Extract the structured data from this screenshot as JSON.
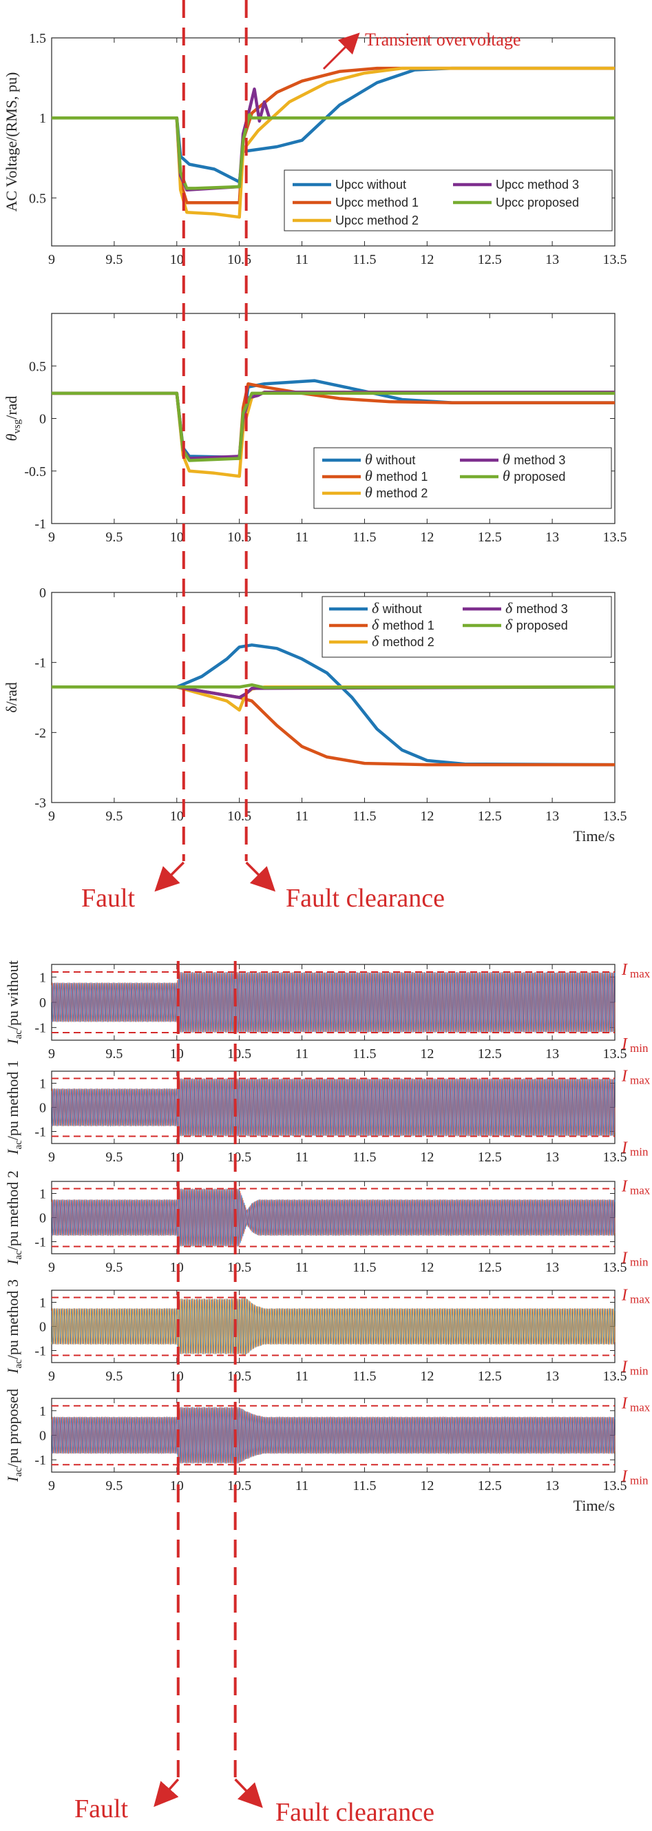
{
  "colors": {
    "without": "#1f77b4",
    "method1": "#d95319",
    "method2": "#edb120",
    "method3": "#7e2f8e",
    "proposed": "#77ac30",
    "annotation": "#d42a2a"
  },
  "annotations": {
    "fault": "Fault",
    "fault_clearance": "Fault clearance",
    "transient_overvoltage": "Transient overvoltage",
    "time_label": "Time/s",
    "imax": "I",
    "imax_sub": "max",
    "imin": "I",
    "imin_sub": "min"
  },
  "chart_data": [
    {
      "type": "line",
      "ylabel": "AC Voltage/(RMS, pu)",
      "xlabel": "",
      "xlim": [
        9,
        13.5
      ],
      "ylim": [
        0.2,
        1.5
      ],
      "xticks": [
        "9",
        "9.5",
        "10",
        "10.5",
        "11",
        "11.5",
        "12",
        "12.5",
        "13",
        "13.5"
      ],
      "yticks": [
        "0.5",
        "1",
        "1.5"
      ],
      "legend": "lower-right",
      "series": [
        {
          "name": "Upcc without",
          "color": "#1f77b4",
          "points": [
            [
              9,
              1
            ],
            [
              10,
              1
            ],
            [
              10.03,
              0.76
            ],
            [
              10.1,
              0.71
            ],
            [
              10.3,
              0.68
            ],
            [
              10.5,
              0.6
            ],
            [
              10.53,
              0.79
            ],
            [
              10.8,
              0.82
            ],
            [
              11,
              0.86
            ],
            [
              11.3,
              1.08
            ],
            [
              11.6,
              1.22
            ],
            [
              11.9,
              1.3
            ],
            [
              12.2,
              1.31
            ],
            [
              13.5,
              1.31
            ]
          ]
        },
        {
          "name": "Upcc method 1",
          "color": "#d95319",
          "points": [
            [
              9,
              1
            ],
            [
              10,
              1
            ],
            [
              10.03,
              0.6
            ],
            [
              10.08,
              0.47
            ],
            [
              10.5,
              0.47
            ],
            [
              10.53,
              0.86
            ],
            [
              10.6,
              1.03
            ],
            [
              10.8,
              1.16
            ],
            [
              11,
              1.23
            ],
            [
              11.3,
              1.29
            ],
            [
              11.6,
              1.31
            ],
            [
              13.5,
              1.31
            ]
          ]
        },
        {
          "name": "Upcc method 2",
          "color": "#edb120",
          "points": [
            [
              9,
              1
            ],
            [
              10,
              1
            ],
            [
              10.03,
              0.55
            ],
            [
              10.08,
              0.41
            ],
            [
              10.3,
              0.4
            ],
            [
              10.5,
              0.38
            ],
            [
              10.53,
              0.8
            ],
            [
              10.65,
              0.92
            ],
            [
              10.9,
              1.1
            ],
            [
              11.2,
              1.22
            ],
            [
              11.5,
              1.28
            ],
            [
              11.8,
              1.31
            ],
            [
              13.5,
              1.31
            ]
          ]
        },
        {
          "name": "Upcc method 3",
          "color": "#7e2f8e",
          "points": [
            [
              9,
              1
            ],
            [
              10,
              1
            ],
            [
              10.03,
              0.64
            ],
            [
              10.08,
              0.55
            ],
            [
              10.5,
              0.57
            ],
            [
              10.53,
              0.9
            ],
            [
              10.58,
              1.05
            ],
            [
              10.62,
              1.18
            ],
            [
              10.66,
              0.98
            ],
            [
              10.7,
              1.1
            ],
            [
              10.74,
              1.0
            ],
            [
              10.78,
              1.0
            ],
            [
              13.5,
              1.0
            ]
          ]
        },
        {
          "name": "Upcc proposed",
          "color": "#77ac30",
          "points": [
            [
              9,
              1
            ],
            [
              10,
              1
            ],
            [
              10.03,
              0.66
            ],
            [
              10.08,
              0.56
            ],
            [
              10.15,
              0.56
            ],
            [
              10.5,
              0.57
            ],
            [
              10.53,
              0.86
            ],
            [
              10.58,
              1.02
            ],
            [
              10.6,
              1.0
            ],
            [
              13.5,
              1.0
            ]
          ]
        }
      ]
    },
    {
      "type": "line",
      "ylabel": "θvsg/rad",
      "ylabel_main": "θ",
      "ylabel_sub": "vsg",
      "ylabel_unit": "/rad",
      "xlabel": "",
      "xlim": [
        9,
        13.5
      ],
      "ylim": [
        -1,
        1
      ],
      "xticks": [
        "9",
        "9.5",
        "10",
        "10.5",
        "11",
        "11.5",
        "12",
        "12.5",
        "13",
        "13.5"
      ],
      "yticks": [
        "-1",
        "-0.5",
        "0",
        "0.5"
      ],
      "legend": "lower-right",
      "legend_symbol": "θ",
      "series": [
        {
          "name": "without",
          "color": "#1f77b4",
          "points": [
            [
              9,
              0.24
            ],
            [
              10,
              0.24
            ],
            [
              10.05,
              -0.28
            ],
            [
              10.1,
              -0.36
            ],
            [
              10.5,
              -0.37
            ],
            [
              10.53,
              -0.05
            ],
            [
              10.57,
              0.3
            ],
            [
              10.7,
              0.33
            ],
            [
              11.1,
              0.36
            ],
            [
              11.5,
              0.26
            ],
            [
              11.8,
              0.18
            ],
            [
              12.2,
              0.15
            ],
            [
              13.5,
              0.15
            ]
          ]
        },
        {
          "name": "method 1",
          "color": "#d95319",
          "points": [
            [
              9,
              0.24
            ],
            [
              10,
              0.24
            ],
            [
              10.05,
              -0.3
            ],
            [
              10.1,
              -0.38
            ],
            [
              10.5,
              -0.38
            ],
            [
              10.53,
              0.1
            ],
            [
              10.57,
              0.33
            ],
            [
              10.7,
              0.3
            ],
            [
              11,
              0.24
            ],
            [
              11.3,
              0.19
            ],
            [
              11.7,
              0.16
            ],
            [
              12.2,
              0.15
            ],
            [
              13.5,
              0.15
            ]
          ]
        },
        {
          "name": "method 2",
          "color": "#edb120",
          "points": [
            [
              9,
              0.24
            ],
            [
              10,
              0.24
            ],
            [
              10.05,
              -0.35
            ],
            [
              10.1,
              -0.5
            ],
            [
              10.3,
              -0.52
            ],
            [
              10.5,
              -0.55
            ],
            [
              10.53,
              -0.1
            ],
            [
              10.6,
              0.2
            ],
            [
              10.7,
              0.25
            ],
            [
              13.5,
              0.25
            ]
          ]
        },
        {
          "name": "method 3",
          "color": "#7e2f8e",
          "points": [
            [
              9,
              0.24
            ],
            [
              10,
              0.24
            ],
            [
              10.05,
              -0.3
            ],
            [
              10.1,
              -0.38
            ],
            [
              10.5,
              -0.36
            ],
            [
              10.53,
              0.0
            ],
            [
              10.58,
              0.2
            ],
            [
              10.65,
              0.22
            ],
            [
              10.7,
              0.25
            ],
            [
              13.5,
              0.25
            ]
          ]
        },
        {
          "name": "proposed",
          "color": "#77ac30",
          "points": [
            [
              9,
              0.24
            ],
            [
              10,
              0.24
            ],
            [
              10.05,
              -0.3
            ],
            [
              10.1,
              -0.4
            ],
            [
              10.5,
              -0.38
            ],
            [
              10.53,
              0.05
            ],
            [
              10.6,
              0.24
            ],
            [
              13.5,
              0.24
            ]
          ]
        }
      ]
    },
    {
      "type": "line",
      "ylabel": "δ/rad",
      "xlabel": "Time/s",
      "xlim": [
        9,
        13.5
      ],
      "ylim": [
        -3,
        0
      ],
      "xticks": [
        "9",
        "9.5",
        "10",
        "10.5",
        "11",
        "11.5",
        "12",
        "12.5",
        "13",
        "13.5"
      ],
      "yticks": [
        "-3",
        "-2",
        "-1",
        "0"
      ],
      "legend": "top-right",
      "legend_symbol": "δ",
      "series": [
        {
          "name": "without",
          "color": "#1f77b4",
          "points": [
            [
              9,
              -1.35
            ],
            [
              10,
              -1.35
            ],
            [
              10.2,
              -1.2
            ],
            [
              10.4,
              -0.95
            ],
            [
              10.5,
              -0.78
            ],
            [
              10.6,
              -0.75
            ],
            [
              10.8,
              -0.8
            ],
            [
              11,
              -0.95
            ],
            [
              11.2,
              -1.15
            ],
            [
              11.4,
              -1.5
            ],
            [
              11.6,
              -1.95
            ],
            [
              11.8,
              -2.25
            ],
            [
              12,
              -2.4
            ],
            [
              12.3,
              -2.45
            ],
            [
              13.5,
              -2.46
            ]
          ]
        },
        {
          "name": "method 1",
          "color": "#d95319",
          "points": [
            [
              9,
              -1.35
            ],
            [
              10,
              -1.35
            ],
            [
              10.5,
              -1.5
            ],
            [
              10.6,
              -1.55
            ],
            [
              10.8,
              -1.9
            ],
            [
              11,
              -2.2
            ],
            [
              11.2,
              -2.35
            ],
            [
              11.5,
              -2.44
            ],
            [
              12,
              -2.46
            ],
            [
              13.5,
              -2.46
            ]
          ]
        },
        {
          "name": "method 2",
          "color": "#edb120",
          "points": [
            [
              9,
              -1.35
            ],
            [
              10,
              -1.35
            ],
            [
              10.2,
              -1.45
            ],
            [
              10.4,
              -1.55
            ],
            [
              10.5,
              -1.68
            ],
            [
              10.55,
              -1.45
            ],
            [
              10.6,
              -1.38
            ],
            [
              10.7,
              -1.35
            ],
            [
              13.5,
              -1.35
            ]
          ]
        },
        {
          "name": "method 3",
          "color": "#7e2f8e",
          "points": [
            [
              9,
              -1.35
            ],
            [
              10,
              -1.35
            ],
            [
              10.5,
              -1.5
            ],
            [
              10.55,
              -1.45
            ],
            [
              10.6,
              -1.37
            ],
            [
              13.5,
              -1.35
            ]
          ]
        },
        {
          "name": "proposed",
          "color": "#77ac30",
          "points": [
            [
              9,
              -1.35
            ],
            [
              10,
              -1.35
            ],
            [
              10.5,
              -1.35
            ],
            [
              10.6,
              -1.32
            ],
            [
              10.7,
              -1.36
            ],
            [
              13.5,
              -1.35
            ]
          ]
        }
      ]
    },
    {
      "type": "line",
      "ylabel": "Iac/pu without",
      "ylabel_main": "I",
      "ylabel_sub": "ac",
      "ylabel_unit": "/pu without",
      "xlim": [
        9,
        13.5
      ],
      "ylim": [
        -1.5,
        1.5
      ],
      "xticks": [
        "9",
        "9.5",
        "10",
        "10.5",
        "11",
        "11.5",
        "12",
        "12.5",
        "13",
        "13.5"
      ],
      "yticks": [
        "-1",
        "0",
        "1"
      ],
      "limit_lines": [
        1.2,
        -1.2
      ],
      "envelope": [
        [
          9,
          0.78
        ],
        [
          10,
          0.78
        ],
        [
          10.02,
          1.2
        ],
        [
          13.5,
          1.2
        ]
      ],
      "envelope_inner": [],
      "overlay_color": "#7e2f8e"
    },
    {
      "type": "line",
      "ylabel": "Iac/pu method 1",
      "ylabel_main": "I",
      "ylabel_sub": "ac",
      "ylabel_unit": "/pu method 1",
      "xlim": [
        9,
        13.5
      ],
      "ylim": [
        -1.5,
        1.5
      ],
      "xticks": [
        "9",
        "9.5",
        "10",
        "10.5",
        "11",
        "11.5",
        "12",
        "12.5",
        "13",
        "13.5"
      ],
      "yticks": [
        "-1",
        "0",
        "1"
      ],
      "limit_lines": [
        1.2,
        -1.2
      ],
      "envelope": [
        [
          9,
          0.78
        ],
        [
          10,
          0.78
        ],
        [
          10.02,
          1.2
        ],
        [
          13.5,
          1.2
        ]
      ],
      "envelope_inner": [],
      "overlay_color": "#7e2f8e"
    },
    {
      "type": "line",
      "ylabel": "Iac/pu method 2",
      "ylabel_main": "I",
      "ylabel_sub": "ac",
      "ylabel_unit": "/pu method 2",
      "xlim": [
        9,
        13.5
      ],
      "ylim": [
        -1.5,
        1.5
      ],
      "xticks": [
        "9",
        "9.5",
        "10",
        "10.5",
        "11",
        "11.5",
        "12",
        "12.5",
        "13",
        "13.5"
      ],
      "yticks": [
        "-1",
        "0",
        "1"
      ],
      "limit_lines": [
        1.2,
        -1.2
      ],
      "envelope": [
        [
          9,
          0.75
        ],
        [
          10,
          0.75
        ],
        [
          10.02,
          1.2
        ],
        [
          10.5,
          1.2
        ],
        [
          10.56,
          0.3
        ],
        [
          10.6,
          0.6
        ],
        [
          10.65,
          0.75
        ],
        [
          13.5,
          0.75
        ]
      ],
      "envelope_inner": [
        [
          10.02,
          10.5
        ]
      ],
      "overlay_color": "#7e2f8e"
    },
    {
      "type": "line",
      "ylabel": "Iac/pu method 3",
      "ylabel_main": "I",
      "ylabel_sub": "ac",
      "ylabel_unit": "/pu method 3",
      "xlim": [
        9,
        13.5
      ],
      "ylim": [
        -1.5,
        1.5
      ],
      "xticks": [
        "9",
        "9.5",
        "10",
        "10.5",
        "11",
        "11.5",
        "12",
        "12.5",
        "13",
        "13.5"
      ],
      "yticks": [
        "-1",
        "0",
        "1"
      ],
      "limit_lines": [
        1.2,
        -1.2
      ],
      "envelope": [
        [
          9,
          0.75
        ],
        [
          10,
          0.75
        ],
        [
          10.02,
          1.15
        ],
        [
          10.5,
          1.15
        ],
        [
          10.55,
          1.2
        ],
        [
          10.62,
          0.9
        ],
        [
          10.7,
          0.75
        ],
        [
          13.5,
          0.75
        ]
      ],
      "envelope_inner": [],
      "overlay_color": "#edb120"
    },
    {
      "type": "line",
      "ylabel": "Iac/pu proposed",
      "ylabel_main": "I",
      "ylabel_sub": "ac",
      "ylabel_unit": "/pu proposed",
      "xlabel": "Time/s",
      "xlim": [
        9,
        13.5
      ],
      "ylim": [
        -1.5,
        1.5
      ],
      "xticks": [
        "9",
        "9.5",
        "10",
        "10.5",
        "11",
        "11.5",
        "12",
        "12.5",
        "13",
        "13.5"
      ],
      "yticks": [
        "-1",
        "0",
        "1"
      ],
      "limit_lines": [
        1.2,
        -1.2
      ],
      "envelope": [
        [
          9,
          0.75
        ],
        [
          10,
          0.75
        ],
        [
          10.02,
          1.15
        ],
        [
          10.5,
          1.15
        ],
        [
          10.55,
          1.0
        ],
        [
          10.62,
          0.85
        ],
        [
          10.7,
          0.75
        ],
        [
          13.5,
          0.75
        ]
      ],
      "envelope_inner": [],
      "overlay_color": "#7e2f8e"
    }
  ]
}
